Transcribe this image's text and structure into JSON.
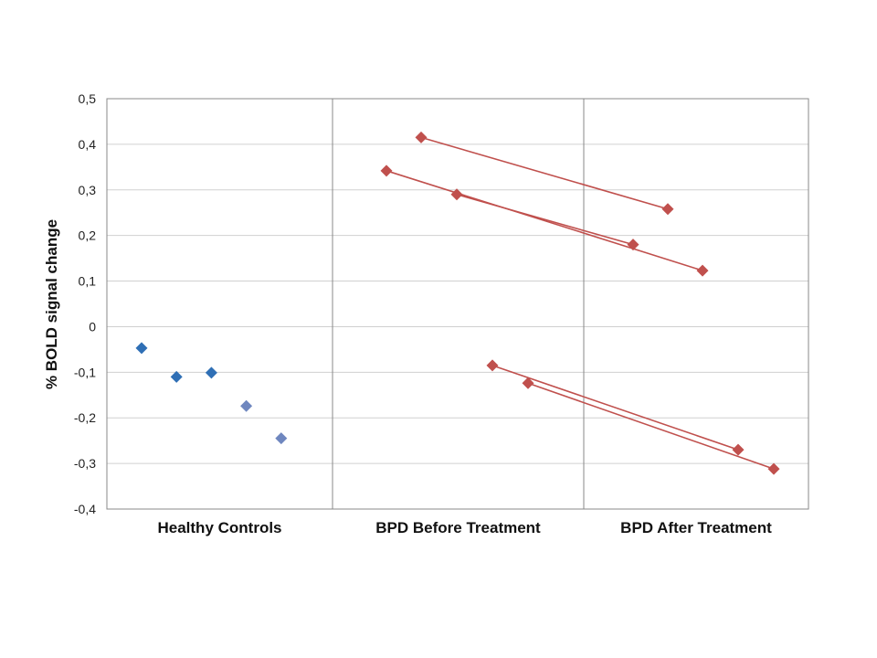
{
  "chart_data": {
    "type": "scatter",
    "title": "",
    "xlabel": "",
    "ylabel": "% BOLD signal change",
    "ylim": [
      -0.4,
      0.5
    ],
    "yticks": [
      0.5,
      0.4,
      0.3,
      0.2,
      0.1,
      0,
      -0.1,
      -0.2,
      -0.3,
      -0.4
    ],
    "ytick_labels": [
      "0,5",
      "0,4",
      "0,3",
      "0,2",
      "0,1",
      "0",
      "-0,1",
      "-0,2",
      "-0,3",
      "-0,4"
    ],
    "categories": [
      "Healthy Controls",
      "BPD Before Treatment",
      "BPD After Treatment"
    ],
    "grid": true,
    "legend": "none",
    "colors": {
      "healthy": "#2f6fb5",
      "healthy_light": "#6f87bf",
      "bpd": "#c0504d",
      "grid": "#d0d0d0",
      "frame": "#888888"
    },
    "healthy_controls": {
      "values": [
        -0.047,
        -0.11,
        -0.101,
        -0.174,
        -0.245
      ]
    },
    "bpd_pairs": [
      {
        "before": 0.415,
        "after": 0.258
      },
      {
        "before": 0.342,
        "after": 0.123
      },
      {
        "before": 0.29,
        "after": 0.18
      },
      {
        "before": -0.085,
        "after": -0.27
      },
      {
        "before": -0.124,
        "after": -0.312
      }
    ]
  }
}
